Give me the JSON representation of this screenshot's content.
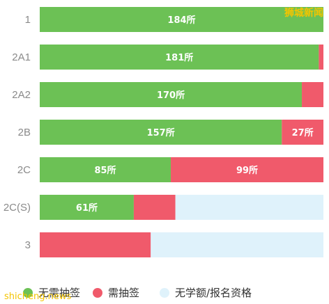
{
  "brand_text": "狮城新闻",
  "footer_text": "shicheng.news",
  "colors": {
    "no_ballot": "#6cc155",
    "ballot": "#f05a6b",
    "no_vacancy": "#dff2fb"
  },
  "chart_data": {
    "type": "bar",
    "orientation": "horizontal",
    "stacked": true,
    "normalized": true,
    "categories": [
      "1",
      "2A1",
      "2A2",
      "2B",
      "2C",
      "2C(S)",
      "3"
    ],
    "series": [
      {
        "name": "无需抽签",
        "values": [
          184,
          181,
          170,
          157,
          85,
          61,
          0
        ],
        "labels": [
          "184所",
          "181所",
          "170所",
          "157所",
          "85所",
          "61所",
          ""
        ]
      },
      {
        "name": "需抽签",
        "values": [
          0,
          3,
          14,
          27,
          99,
          27,
          72
        ],
        "labels": [
          "",
          "",
          "",
          "27所",
          "99所",
          "",
          ""
        ]
      },
      {
        "name": "无学额/报名资格",
        "values": [
          0,
          0,
          0,
          0,
          0,
          96,
          112
        ],
        "labels": [
          "",
          "",
          "",
          "",
          "",
          "",
          ""
        ]
      }
    ],
    "total": 184,
    "legend": "bottom-left"
  }
}
